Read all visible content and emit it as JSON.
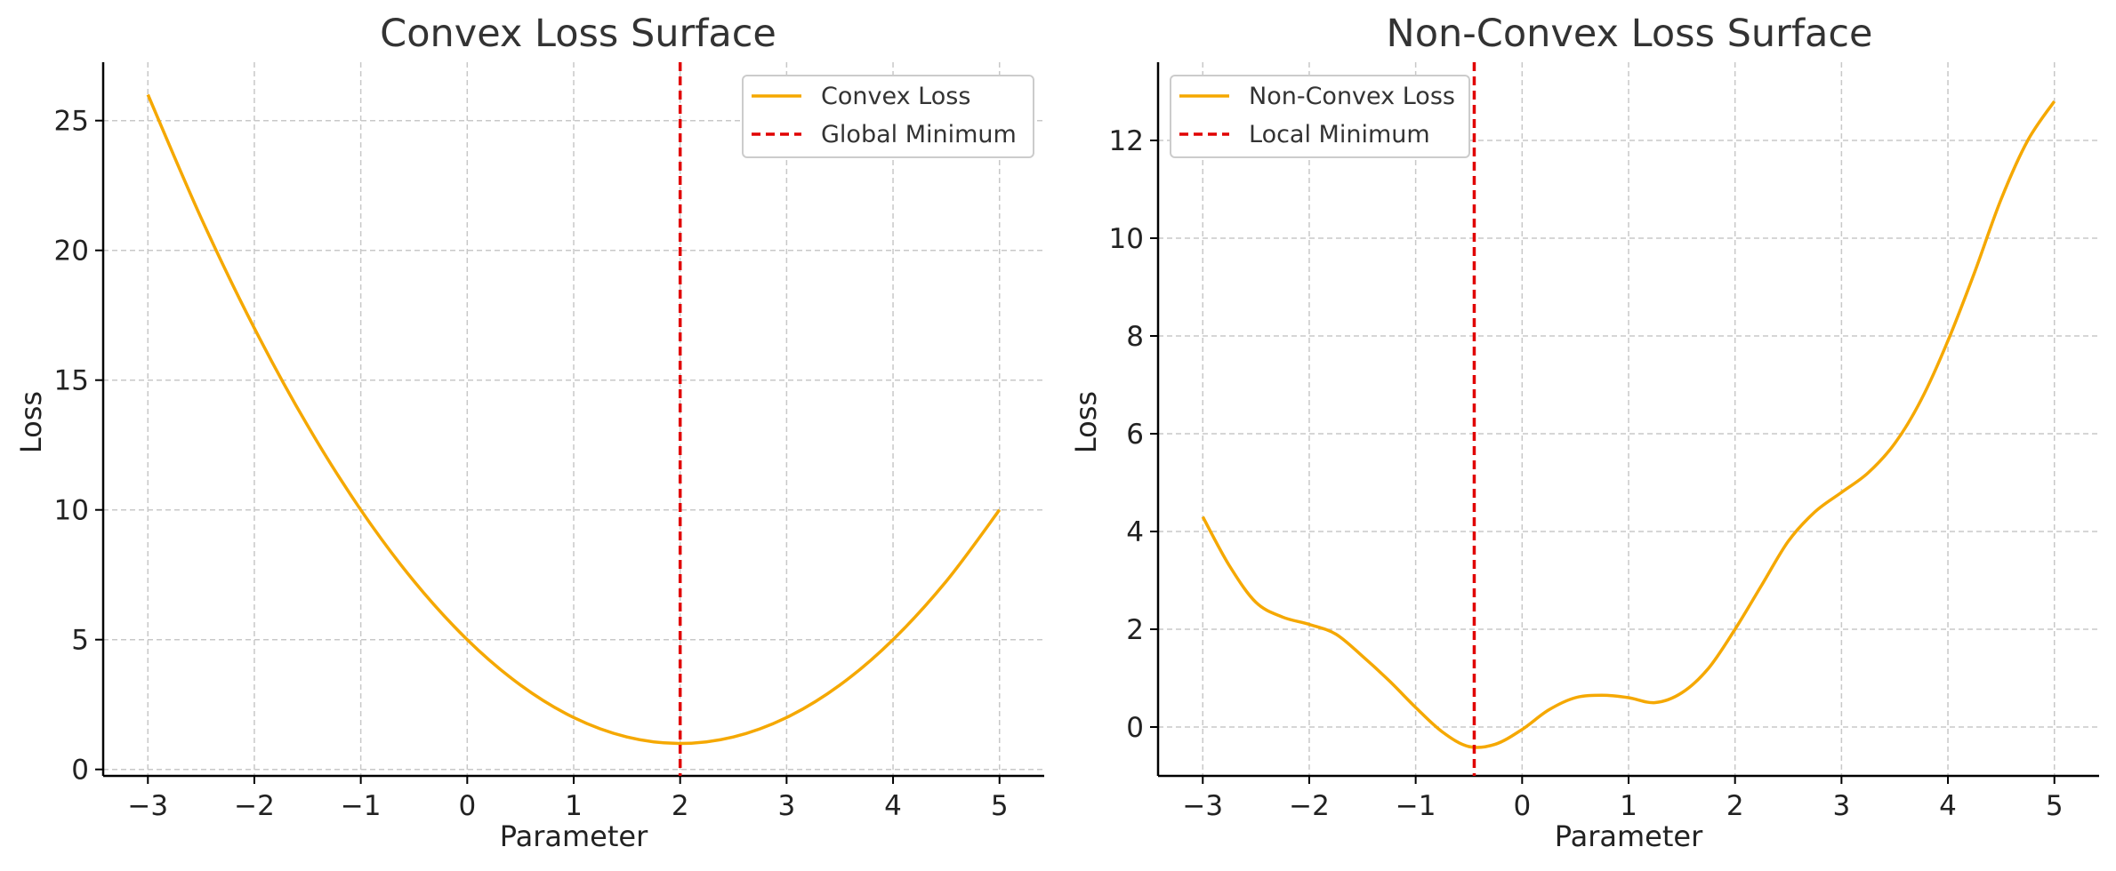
{
  "colors": {
    "loss_curve": "#f5a800",
    "minimum_line": "#e00000"
  },
  "chart_data": [
    {
      "type": "line",
      "title": "Convex Loss Surface",
      "xlabel": "Parameter",
      "ylabel": "Loss",
      "xlim": [
        -3.42,
        5.42
      ],
      "ylim": [
        -0.25,
        27.25
      ],
      "xticks": [
        -3,
        -2,
        -1,
        0,
        1,
        2,
        3,
        4,
        5
      ],
      "xtick_labels": [
        "−3",
        "−2",
        "−1",
        "0",
        "1",
        "2",
        "3",
        "4",
        "5"
      ],
      "yticks": [
        0,
        5,
        10,
        15,
        20,
        25
      ],
      "ytick_labels": [
        "0",
        "5",
        "10",
        "15",
        "20",
        "25"
      ],
      "grid": true,
      "legend_position": "top-right",
      "series": [
        {
          "name": "Convex Loss",
          "style": "solid",
          "x": [
            -3,
            -2.5,
            -2,
            -1.5,
            -1,
            -0.5,
            0,
            0.5,
            1,
            1.5,
            2,
            2.5,
            3,
            3.5,
            4,
            4.5,
            5
          ],
          "y": [
            26,
            21.25,
            17,
            13.25,
            10,
            7.25,
            5,
            3.25,
            2,
            1.25,
            1,
            1.25,
            2,
            3.25,
            5,
            7.25,
            10
          ]
        }
      ],
      "vlines": [
        {
          "name": "Global Minimum",
          "x": 2,
          "style": "dashed"
        }
      ]
    },
    {
      "type": "line",
      "title": "Non-Convex Loss Surface",
      "xlabel": "Parameter",
      "ylabel": "Loss",
      "xlim": [
        -3.42,
        5.42
      ],
      "ylim": [
        -1.0,
        13.6
      ],
      "xticks": [
        -3,
        -2,
        -1,
        0,
        1,
        2,
        3,
        4,
        5
      ],
      "xtick_labels": [
        "−3",
        "−2",
        "−1",
        "0",
        "1",
        "2",
        "3",
        "4",
        "5"
      ],
      "yticks": [
        0,
        2,
        4,
        6,
        8,
        10,
        12
      ],
      "ytick_labels": [
        "0",
        "2",
        "4",
        "6",
        "8",
        "10",
        "12"
      ],
      "grid": true,
      "legend_position": "top-left",
      "series": [
        {
          "name": "Non-Convex Loss",
          "style": "solid",
          "x": [
            -3,
            -2.75,
            -2.5,
            -2.25,
            -2,
            -1.75,
            -1.5,
            -1.25,
            -1,
            -0.75,
            -0.5,
            -0.25,
            0,
            0.25,
            0.5,
            0.75,
            1,
            1.25,
            1.5,
            1.75,
            2,
            2.25,
            2.5,
            2.75,
            3,
            3.25,
            3.5,
            3.75,
            4,
            4.25,
            4.5,
            4.75,
            5
          ],
          "y": [
            4.3,
            3.3,
            2.55,
            2.25,
            2.1,
            1.9,
            1.45,
            0.95,
            0.4,
            -0.1,
            -0.4,
            -0.35,
            -0.05,
            0.35,
            0.6,
            0.65,
            0.6,
            0.5,
            0.7,
            1.2,
            2.0,
            2.9,
            3.8,
            4.4,
            4.8,
            5.2,
            5.8,
            6.7,
            7.9,
            9.3,
            10.8,
            12.0,
            12.8
          ]
        }
      ],
      "vlines": [
        {
          "name": "Local Minimum",
          "x": -0.45,
          "style": "dashed"
        }
      ]
    }
  ]
}
